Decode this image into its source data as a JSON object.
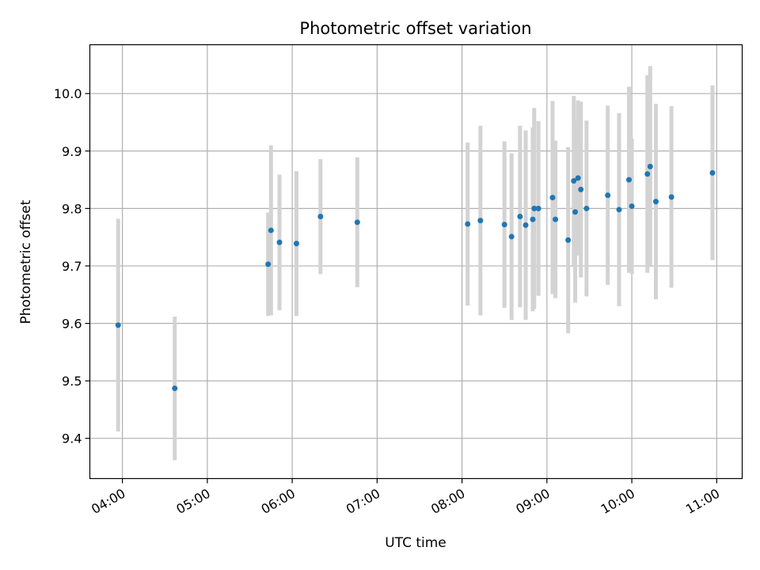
{
  "chart_data": {
    "type": "scatter",
    "title": "Photometric offset variation",
    "xlabel": "UTC time",
    "ylabel": "Photometric offset",
    "grid": true,
    "x_type": "time",
    "xlim": [
      "03:37",
      "11:18"
    ],
    "ylim": [
      9.33,
      10.085
    ],
    "x_ticks": [
      "04:00",
      "05:00",
      "06:00",
      "07:00",
      "08:00",
      "09:00",
      "10:00",
      "11:00"
    ],
    "y_ticks": [
      9.4,
      9.5,
      9.6,
      9.7,
      9.8,
      9.9,
      10.0
    ],
    "y_tick_labels": [
      "9.4",
      "9.5",
      "9.6",
      "9.7",
      "9.8",
      "9.9",
      "10.0"
    ],
    "colors": {
      "marker": "#1f77b4",
      "errorbar": "#d3d3d3",
      "grid": "#b0b0b0"
    },
    "points": [
      {
        "x": "03:57",
        "y": 9.597,
        "err": 0.185
      },
      {
        "x": "04:37",
        "y": 9.487,
        "err": 0.125
      },
      {
        "x": "05:43",
        "y": 9.703,
        "err": 0.09
      },
      {
        "x": "05:45",
        "y": 9.762,
        "err": 0.148
      },
      {
        "x": "05:51",
        "y": 9.741,
        "err": 0.118
      },
      {
        "x": "06:03",
        "y": 9.739,
        "err": 0.126
      },
      {
        "x": "06:20",
        "y": 9.786,
        "err": 0.1
      },
      {
        "x": "06:46",
        "y": 9.776,
        "err": 0.113
      },
      {
        "x": "08:04",
        "y": 9.773,
        "err": 0.142
      },
      {
        "x": "08:13",
        "y": 9.779,
        "err": 0.165
      },
      {
        "x": "08:30",
        "y": 9.772,
        "err": 0.145
      },
      {
        "x": "08:35",
        "y": 9.751,
        "err": 0.145
      },
      {
        "x": "08:41",
        "y": 9.786,
        "err": 0.158
      },
      {
        "x": "08:45",
        "y": 9.771,
        "err": 0.165
      },
      {
        "x": "08:50",
        "y": 9.781,
        "err": 0.16
      },
      {
        "x": "08:51",
        "y": 9.8,
        "err": 0.175
      },
      {
        "x": "08:54",
        "y": 9.8,
        "err": 0.152
      },
      {
        "x": "09:04",
        "y": 9.819,
        "err": 0.168
      },
      {
        "x": "09:06",
        "y": 9.781,
        "err": 0.137
      },
      {
        "x": "09:15",
        "y": 9.745,
        "err": 0.162
      },
      {
        "x": "09:19",
        "y": 9.848,
        "err": 0.148
      },
      {
        "x": "09:20",
        "y": 9.794,
        "err": 0.158
      },
      {
        "x": "09:22",
        "y": 9.853,
        "err": 0.135
      },
      {
        "x": "09:24",
        "y": 9.833,
        "err": 0.153
      },
      {
        "x": "09:28",
        "y": 9.8,
        "err": 0.153
      },
      {
        "x": "09:43",
        "y": 9.823,
        "err": 0.156
      },
      {
        "x": "09:51",
        "y": 9.798,
        "err": 0.168
      },
      {
        "x": "09:58",
        "y": 9.85,
        "err": 0.162
      },
      {
        "x": "10:00",
        "y": 9.804,
        "err": 0.118
      },
      {
        "x": "10:11",
        "y": 9.86,
        "err": 0.172
      },
      {
        "x": "10:13",
        "y": 9.873,
        "err": 0.175
      },
      {
        "x": "10:17",
        "y": 9.812,
        "err": 0.17
      },
      {
        "x": "10:28",
        "y": 9.82,
        "err": 0.158
      },
      {
        "x": "10:57",
        "y": 9.862,
        "err": 0.152
      }
    ]
  }
}
